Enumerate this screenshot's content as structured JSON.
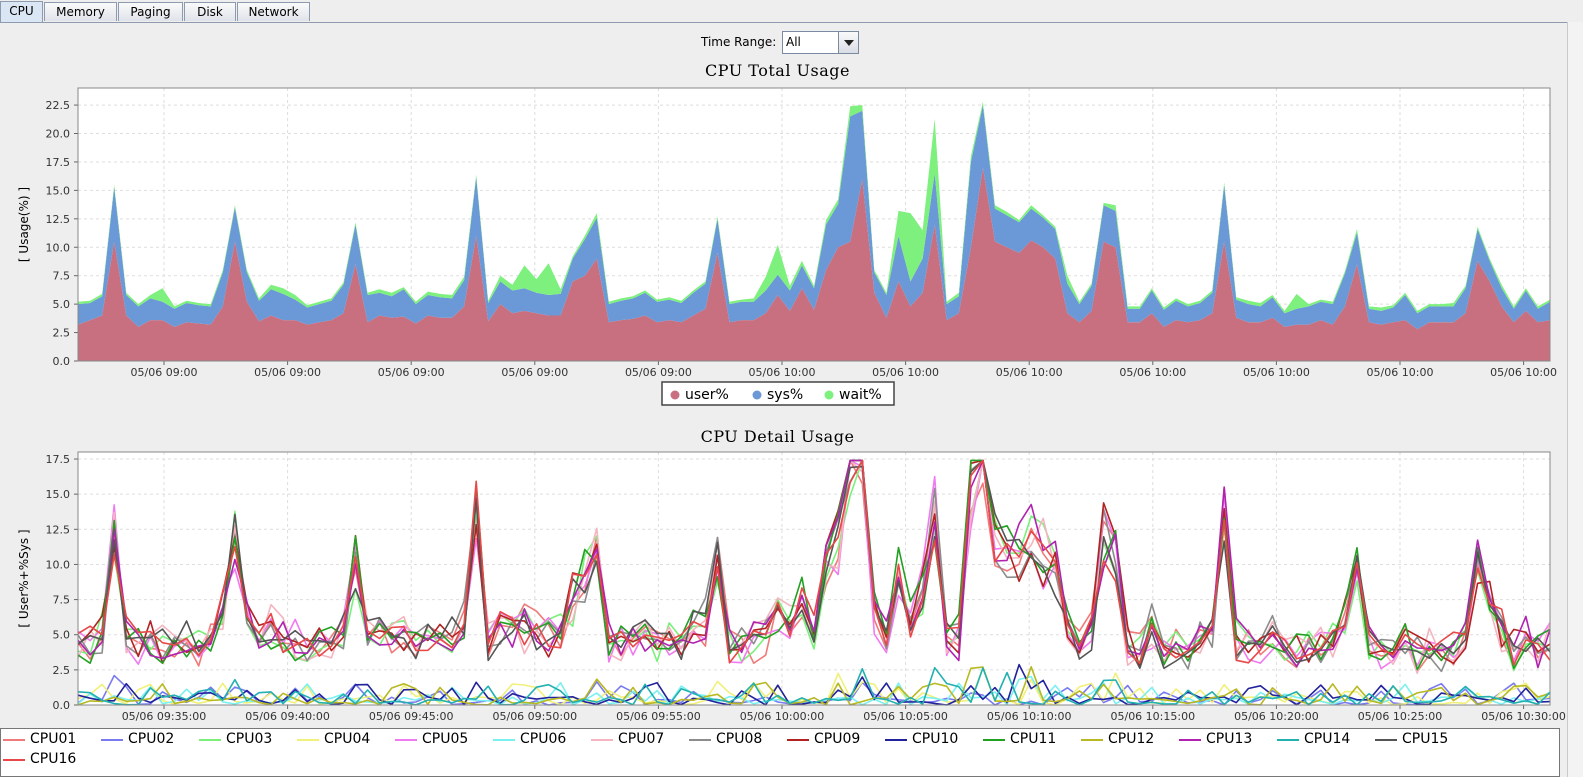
{
  "tabs": [
    "CPU",
    "Memory",
    "Paging",
    "Disk",
    "Network"
  ],
  "active_tab": "CPU",
  "time_range": {
    "label": "Time Range:",
    "value": "All"
  },
  "chart_data": [
    {
      "type": "area",
      "title": "CPU Total Usage",
      "ylabel": "[ Usage(%) ]",
      "xlabel": "",
      "ylim": [
        0,
        24
      ],
      "y_ticks": [
        "0.0",
        "2.5",
        "5.0",
        "7.5",
        "10.0",
        "12.5",
        "15.0",
        "17.5",
        "20.0",
        "22.5"
      ],
      "x_tick_labels": [
        "05/06 09:00",
        "05/06 09:00",
        "05/06 09:00",
        "05/06 09:00",
        "05/06 09:00",
        "05/06 10:00",
        "05/06 10:00",
        "05/06 10:00",
        "05/06 10:00",
        "05/06 10:00",
        "05/06 10:00",
        "05/06 10:00"
      ],
      "stacked": true,
      "grid": true,
      "legend_position": "bottom",
      "series": [
        {
          "name": "user%",
          "color": "#c8707f",
          "values": [
            3.2,
            3.6,
            4.0,
            10.5,
            4.0,
            3.0,
            3.6,
            3.6,
            3.0,
            3.4,
            3.3,
            3.2,
            4.8,
            10.5,
            5.2,
            3.5,
            4.0,
            3.6,
            3.6,
            3.2,
            3.4,
            3.6,
            4.2,
            8.5,
            3.4,
            4.0,
            3.8,
            3.9,
            3.3,
            4.0,
            3.8,
            3.8,
            4.8,
            11.0,
            3.5,
            5.0,
            4.2,
            4.4,
            4.2,
            4.0,
            4.0,
            7.0,
            7.5,
            9.0,
            3.4,
            3.6,
            3.7,
            4.0,
            3.4,
            3.6,
            3.4,
            4.0,
            4.6,
            9.5,
            3.4,
            3.6,
            3.6,
            4.2,
            5.8,
            4.4,
            6.4,
            4.5,
            8.0,
            10.0,
            10.5,
            16.0,
            6.0,
            3.8,
            7.0,
            4.8,
            6.0,
            12.0,
            3.6,
            4.2,
            10.0,
            17.0,
            10.5,
            10.0,
            9.5,
            10.6,
            10.0,
            9.0,
            4.2,
            3.4,
            4.4,
            10.5,
            10.0,
            3.4,
            3.4,
            4.2,
            3.0,
            3.6,
            3.4,
            3.6,
            4.2,
            10.5,
            3.8,
            3.4,
            3.4,
            3.8,
            3.0,
            3.2,
            3.2,
            3.6,
            3.2,
            4.8,
            8.5,
            3.4,
            3.2,
            3.4,
            3.6,
            2.8,
            3.4,
            3.4,
            3.4,
            4.2,
            8.8,
            7.0,
            4.8,
            3.4,
            4.4,
            3.4,
            3.6
          ]
        },
        {
          "name": "sys%",
          "color": "#6b98d6",
          "values": [
            1.8,
            1.5,
            1.7,
            4.8,
            1.8,
            1.8,
            1.9,
            1.6,
            1.6,
            1.7,
            1.6,
            1.6,
            3.0,
            3.0,
            2.6,
            1.8,
            2.3,
            2.3,
            1.8,
            1.5,
            1.6,
            1.7,
            2.5,
            3.5,
            2.4,
            2.0,
            1.9,
            2.4,
            1.7,
            1.8,
            1.8,
            1.7,
            2.3,
            5.2,
            1.6,
            2.0,
            2.0,
            2.0,
            1.8,
            1.8,
            1.9,
            2.0,
            3.2,
            3.6,
            1.6,
            1.7,
            1.8,
            2.0,
            1.8,
            1.8,
            1.7,
            2.0,
            2.2,
            3.0,
            1.6,
            1.6,
            1.6,
            2.0,
            1.8,
            1.8,
            2.0,
            1.9,
            4.0,
            3.8,
            11.0,
            6.0,
            1.8,
            2.0,
            4.0,
            2.2,
            3.0,
            4.5,
            1.4,
            1.5,
            7.5,
            5.5,
            2.9,
            2.8,
            2.7,
            2.8,
            2.6,
            2.6,
            2.6,
            1.6,
            2.2,
            3.2,
            3.2,
            1.2,
            1.2,
            2.0,
            1.5,
            1.7,
            1.4,
            1.5,
            1.8,
            5.0,
            1.6,
            1.6,
            1.4,
            1.8,
            1.2,
            1.4,
            1.6,
            1.6,
            1.8,
            2.9,
            2.8,
            1.2,
            1.2,
            1.3,
            2.2,
            1.4,
            1.4,
            1.4,
            1.4,
            2.2,
            2.8,
            1.8,
            1.6,
            1.2,
            1.8,
            1.2,
            1.6
          ]
        },
        {
          "name": "wait%",
          "color": "#7ef07e",
          "values": [
            0.2,
            0.2,
            0.2,
            0.2,
            0.2,
            0.2,
            0.3,
            1.2,
            0.2,
            0.2,
            0.2,
            0.2,
            0.2,
            0.2,
            0.2,
            0.2,
            0.4,
            0.5,
            0.4,
            0.2,
            0.2,
            0.2,
            0.2,
            0.2,
            0.2,
            0.3,
            0.3,
            0.2,
            0.2,
            0.3,
            0.3,
            0.3,
            0.3,
            0.2,
            0.2,
            0.5,
            0.5,
            2.0,
            1.2,
            2.8,
            0.4,
            0.2,
            0.3,
            0.4,
            0.2,
            0.2,
            0.2,
            0.2,
            0.2,
            0.2,
            0.2,
            0.2,
            0.2,
            0.2,
            0.2,
            0.2,
            0.3,
            1.2,
            2.6,
            0.4,
            0.4,
            0.2,
            0.4,
            0.4,
            0.9,
            0.5,
            0.2,
            0.2,
            2.2,
            6.0,
            2.5,
            4.8,
            0.2,
            0.3,
            0.5,
            0.3,
            0.3,
            0.3,
            0.2,
            0.3,
            0.2,
            0.2,
            0.7,
            0.2,
            0.2,
            0.2,
            0.5,
            0.2,
            0.2,
            0.2,
            0.2,
            0.2,
            0.2,
            0.2,
            0.2,
            0.2,
            0.2,
            0.3,
            0.3,
            0.2,
            0.2,
            1.3,
            0.2,
            0.2,
            0.2,
            0.2,
            0.3,
            0.2,
            0.3,
            0.2,
            0.2,
            0.2,
            0.2,
            0.2,
            0.3,
            0.2,
            0.2,
            0.2,
            0.3,
            0.2,
            0.2,
            0.2,
            0.2
          ]
        }
      ]
    },
    {
      "type": "line",
      "title": "CPU Detail Usage",
      "ylabel": "[ User%+%Sys ]",
      "xlabel": "",
      "ylim": [
        0,
        18
      ],
      "y_ticks": [
        "0.0",
        "2.5",
        "5.0",
        "7.5",
        "10.0",
        "12.5",
        "15.0",
        "17.5"
      ],
      "x_tick_labels": [
        "05/06 09:35:00",
        "05/06 09:40:00",
        "05/06 09:45:00",
        "05/06 09:50:00",
        "05/06 09:55:00",
        "05/06 10:00:00",
        "05/06 10:05:00",
        "05/06 10:10:00",
        "05/06 10:15:00",
        "05/06 10:20:00",
        "05/06 10:25:00",
        "05/06 10:30:00"
      ],
      "grid": true,
      "legend_position": "bottom",
      "series": [
        {
          "name": "CPU01",
          "color": "#f07a7a"
        },
        {
          "name": "CPU02",
          "color": "#7a7af0"
        },
        {
          "name": "CPU03",
          "color": "#7af07a"
        },
        {
          "name": "CPU04",
          "color": "#f0f07a"
        },
        {
          "name": "CPU05",
          "color": "#f07af0"
        },
        {
          "name": "CPU06",
          "color": "#7af0f0"
        },
        {
          "name": "CPU07",
          "color": "#f4b4c0"
        },
        {
          "name": "CPU08",
          "color": "#8c8c8c"
        },
        {
          "name": "CPU09",
          "color": "#b22222"
        },
        {
          "name": "CPU10",
          "color": "#22229c"
        },
        {
          "name": "CPU11",
          "color": "#22a022"
        },
        {
          "name": "CPU12",
          "color": "#b8b822"
        },
        {
          "name": "CPU13",
          "color": "#b022b0"
        },
        {
          "name": "CPU14",
          "color": "#22b0b0"
        },
        {
          "name": "CPU15",
          "color": "#555555"
        },
        {
          "name": "CPU16",
          "color": "#e84848"
        }
      ]
    }
  ]
}
